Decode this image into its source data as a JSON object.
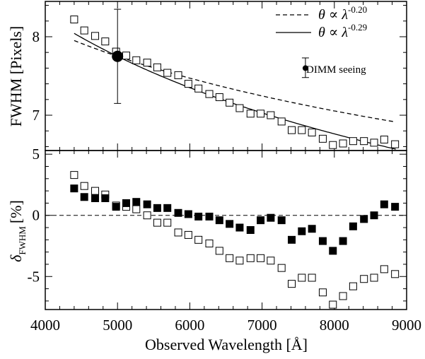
{
  "chart_data": [
    {
      "panel": "top",
      "type": "scatter",
      "xlabel": "",
      "ylabel": "FWHM [Pixels]",
      "xlim": [
        4000,
        9000
      ],
      "ylim": [
        6.55,
        8.45
      ],
      "yticks": [
        7,
        8
      ],
      "ytick_labels": [
        "7",
        "8"
      ],
      "grid": false,
      "legend_position": "top-right",
      "legend": [
        {
          "style": "dashed",
          "base": "θ ∝ λ",
          "exponent": "-0.20"
        },
        {
          "style": "solid",
          "base": "θ ∝ λ",
          "exponent": "-0.29"
        }
      ],
      "dimm_label": "DIMM seeing",
      "dimm_point": {
        "x": 5000,
        "y": 7.75,
        "yerr_low": 7.15,
        "yerr_high": 8.35
      },
      "dimm_key_point": {
        "x": 7600,
        "y": 7.6,
        "yerr_low": 7.48,
        "yerr_high": 7.73
      },
      "series": [
        {
          "marker": "open-square",
          "x": [
            4400,
            4540,
            4690,
            4830,
            4980,
            5120,
            5260,
            5410,
            5550,
            5690,
            5840,
            5980,
            6120,
            6270,
            6410,
            6550,
            6690,
            6840,
            6980,
            7120,
            7270,
            7410,
            7550,
            7690,
            7840,
            7980,
            8120,
            8260,
            8410,
            8550,
            8690,
            8840
          ],
          "y": [
            8.22,
            8.08,
            8.01,
            7.94,
            7.81,
            7.76,
            7.7,
            7.67,
            7.61,
            7.54,
            7.51,
            7.4,
            7.34,
            7.27,
            7.23,
            7.16,
            7.09,
            7.02,
            7.02,
            7.0,
            6.92,
            6.81,
            6.81,
            6.78,
            6.7,
            6.62,
            6.64,
            6.67,
            6.67,
            6.65,
            6.69,
            6.63
          ]
        }
      ],
      "models": [
        {
          "style": "dashed",
          "exponent": -0.2,
          "ref_x": 5000,
          "ref_y": 7.75
        },
        {
          "style": "solid",
          "exponent": -0.29,
          "ref_x": 5000,
          "ref_y": 7.75
        }
      ]
    },
    {
      "panel": "bottom",
      "type": "scatter",
      "xlabel": "Observed Wavelength [Å]",
      "ylabel_main": "δ",
      "ylabel_sub": "FWHM",
      "ylabel_unit": "[%]",
      "xlim": [
        4000,
        9000
      ],
      "ylim": [
        -7.7,
        5.3
      ],
      "xticks": [
        4000,
        5000,
        6000,
        7000,
        8000,
        9000
      ],
      "xtick_labels": [
        "4000",
        "5000",
        "6000",
        "7000",
        "8000",
        "9000"
      ],
      "yticks": [
        -5,
        0,
        5
      ],
      "ytick_labels": [
        "-5",
        "0",
        "5"
      ],
      "grid": false,
      "reference_line": 0,
      "series": [
        {
          "marker": "open-square",
          "x": [
            4400,
            4540,
            4690,
            4830,
            4980,
            5120,
            5260,
            5410,
            5550,
            5690,
            5840,
            5980,
            6120,
            6270,
            6410,
            6550,
            6690,
            6840,
            6980,
            7120,
            7270,
            7410,
            7550,
            7690,
            7840,
            7980,
            8120,
            8260,
            8410,
            8550,
            8690,
            8840
          ],
          "y": [
            3.3,
            2.4,
            2.0,
            1.7,
            0.8,
            0.7,
            0.5,
            0.0,
            -0.6,
            -0.6,
            -1.4,
            -1.6,
            -2.0,
            -2.3,
            -2.9,
            -3.5,
            -3.7,
            -3.5,
            -3.5,
            -3.7,
            -4.3,
            -5.6,
            -5.1,
            -5.1,
            -6.3,
            -7.3,
            -6.6,
            -5.8,
            -5.2,
            -5.1,
            -4.4,
            -4.8
          ]
        },
        {
          "marker": "filled-square",
          "x": [
            4400,
            4540,
            4690,
            4830,
            4980,
            5120,
            5260,
            5410,
            5550,
            5690,
            5840,
            5980,
            6120,
            6270,
            6410,
            6550,
            6690,
            6840,
            6980,
            7120,
            7270,
            7410,
            7550,
            7690,
            7840,
            7980,
            8120,
            8260,
            8410,
            8550,
            8690,
            8840
          ],
          "y": [
            2.2,
            1.5,
            1.4,
            1.4,
            0.7,
            1.0,
            1.1,
            0.9,
            0.6,
            0.6,
            0.2,
            0.1,
            -0.1,
            -0.1,
            -0.4,
            -0.7,
            -1.0,
            -1.2,
            -0.4,
            -0.2,
            -0.4,
            -2.0,
            -1.3,
            -1.1,
            -2.1,
            -2.9,
            -2.1,
            -0.9,
            -0.3,
            0.0,
            0.9,
            0.7
          ]
        }
      ]
    }
  ]
}
